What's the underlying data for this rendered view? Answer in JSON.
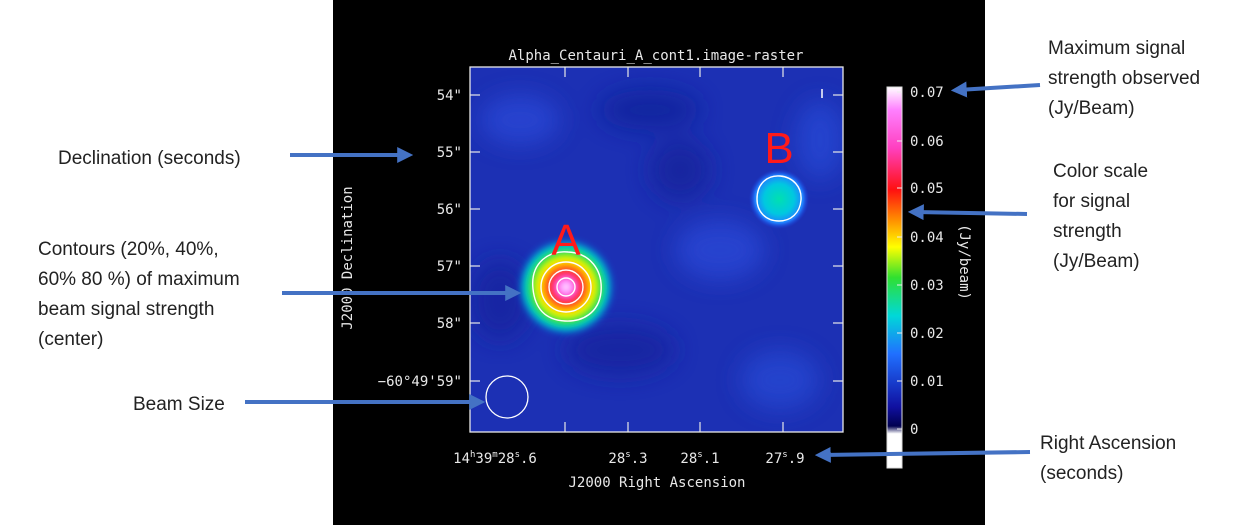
{
  "plot": {
    "title": "Alpha_Centauri_A_cont1.image-raster",
    "x_axis_label": "J2000 Right Ascension",
    "y_axis_label": "J2000 Declination",
    "y_ticks": [
      "54\"",
      "55\"",
      "56\"",
      "57\"",
      "58\"",
      "−60°49'59\""
    ],
    "x_ticks": [
      [
        "14",
        "h",
        "39",
        "m",
        "28",
        "s",
        ".6"
      ],
      [
        "28",
        "s",
        ".3"
      ],
      [
        "28",
        "s",
        ".1"
      ],
      [
        "27",
        "s",
        ".9"
      ]
    ],
    "colorbar": {
      "label": "(Jy/beam)",
      "ticks": [
        "0.07",
        "0.06",
        "0.05",
        "0.04",
        "0.03",
        "0.02",
        "0.01",
        "0"
      ]
    },
    "sources": [
      "A",
      "B"
    ]
  },
  "annotations": [
    {
      "lines": [
        "Declination (seconds)"
      ]
    },
    {
      "lines": [
        "Contours (20%, 40%,",
        "60% 80 %) of maximum",
        "beam signal strength",
        "(center)"
      ]
    },
    {
      "lines": [
        "Beam Size"
      ]
    },
    {
      "lines": [
        "Maximum signal",
        "strength observed",
        "(Jy/Beam)"
      ]
    },
    {
      "lines": [
        "Color scale",
        "for signal",
        "strength",
        "(Jy/Beam)"
      ]
    },
    {
      "lines": [
        "Right Ascension",
        "(seconds)"
      ]
    }
  ]
}
